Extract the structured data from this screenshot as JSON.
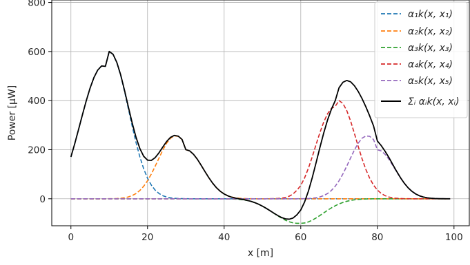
{
  "chart_data": {
    "type": "line",
    "title": "",
    "xlabel": "x [m]",
    "ylabel": "Power [μW]",
    "xlim": [
      -5,
      104
    ],
    "ylim": [
      -110,
      810
    ],
    "xticks": [
      0,
      20,
      40,
      60,
      80,
      100
    ],
    "yticks": [
      0,
      200,
      400,
      600,
      800
    ],
    "grid": true,
    "legend_position": "top-right",
    "x": [
      0,
      1,
      2,
      3,
      4,
      5,
      6,
      7,
      8,
      9,
      10,
      11,
      12,
      13,
      14,
      15,
      16,
      17,
      18,
      19,
      20,
      21,
      22,
      23,
      24,
      25,
      26,
      27,
      28,
      29,
      30,
      31,
      32,
      33,
      34,
      35,
      36,
      37,
      38,
      39,
      40,
      41,
      42,
      43,
      44,
      45,
      46,
      47,
      48,
      49,
      50,
      51,
      52,
      53,
      54,
      55,
      56,
      57,
      58,
      59,
      60,
      61,
      62,
      63,
      64,
      65,
      66,
      67,
      68,
      69,
      70,
      71,
      72,
      73,
      74,
      75,
      76,
      77,
      78,
      79,
      80,
      81,
      82,
      83,
      84,
      85,
      86,
      87,
      88,
      89,
      90,
      91,
      92,
      93,
      94,
      95,
      96,
      97,
      98,
      99
    ],
    "series": [
      {
        "name": "α₁k(x, x₁)",
        "color": "#1f77b4",
        "dash": "dashed",
        "values": [
          170.4,
          224.5,
          282.6,
          342.0,
          399.2,
          450.8,
          493.7,
          524.4,
          541.2,
          539.7,
          600.0,
          588.2,
          554.0,
          502.2,
          437.4,
          366.4,
          295.7,
          229.1,
          170.6,
          122.0,
          83.8,
          55.4,
          35.2,
          21.4,
          12.5,
          7.1,
          3.8,
          2.0,
          1.0,
          0.5,
          0.2,
          0.1,
          0.0,
          0.0,
          0.0,
          0.0,
          0.0,
          0.0,
          0.0,
          0.0,
          0.0,
          0.0,
          0.0,
          0.0,
          0.0,
          0.0,
          0.0,
          0.0,
          0.0,
          0.0,
          0.0,
          0.0,
          0.0,
          0.0,
          0.0,
          0.0,
          0.0,
          0.0,
          0.0,
          0.0,
          0.0,
          0.0,
          0.0,
          0.0,
          0.0,
          0.0,
          0.0,
          0.0,
          0.0,
          0.0,
          0.0,
          0.0,
          0.0,
          0.0,
          0.0,
          0.0,
          0.0,
          0.0,
          0.0,
          0.0,
          0.0,
          0.0,
          0.0,
          0.0,
          0.0,
          0.0,
          0.0,
          0.0,
          0.0,
          0.0,
          0.0,
          0.0,
          0.0,
          0.0,
          0.0,
          0.0,
          0.0,
          0.0,
          0.0,
          0.0
        ]
      },
      {
        "name": "α₂k(x, x₂)",
        "color": "#ff7f0e",
        "dash": "dashed",
        "values": [
          0.0,
          0.0,
          0.0,
          0.0,
          0.0,
          0.0,
          0.0,
          0.0,
          0.0,
          0.0,
          0.3,
          0.5,
          1.1,
          2.2,
          4.1,
          7.5,
          13.0,
          21.5,
          33.9,
          51.1,
          73.6,
          101.1,
          132.6,
          166.1,
          198.7,
          226.6,
          246.6,
          256.2,
          254.4,
          241.5,
          200.0,
          195.1,
          181.2,
          161.2,
          136.4,
          110.7,
          85.9,
          63.6,
          45.0,
          30.5,
          19.7,
          12.1,
          7.1,
          4.0,
          2.1,
          1.1,
          0.5,
          0.2,
          0.1,
          0.0,
          0.0,
          0.0,
          0.0,
          0.0,
          0.0,
          0.0,
          0.0,
          0.0,
          0.0,
          0.0,
          0.0,
          0.0,
          0.0,
          0.0,
          0.0,
          0.0,
          0.0,
          0.0,
          0.0,
          0.0,
          0.0,
          0.0,
          0.0,
          0.0,
          0.0,
          0.0,
          0.0,
          0.0,
          0.0,
          0.0,
          0.0,
          0.0,
          0.0,
          0.0,
          0.0,
          0.0,
          0.0,
          0.0,
          0.0,
          0.0,
          0.0,
          0.0,
          0.0,
          0.0,
          0.0,
          0.0,
          0.0,
          0.0,
          0.0,
          0.0
        ]
      },
      {
        "name": "α₃k(x, x₃)",
        "color": "#2ca02c",
        "dash": "dashed",
        "values": [
          0.0,
          0.0,
          0.0,
          0.0,
          0.0,
          0.0,
          0.0,
          0.0,
          0.0,
          0.0,
          0.0,
          0.0,
          0.0,
          0.0,
          0.0,
          0.0,
          0.0,
          0.0,
          0.0,
          0.0,
          0.0,
          0.0,
          0.0,
          0.0,
          0.0,
          0.0,
          0.0,
          0.0,
          0.0,
          0.0,
          0.0,
          0.0,
          0.0,
          0.0,
          0.0,
          0.0,
          0.0,
          0.0,
          0.0,
          -0.1,
          -0.2,
          -0.4,
          -0.8,
          -1.4,
          -2.6,
          -4.3,
          -7.0,
          -10.7,
          -15.8,
          -22.2,
          -30.1,
          -39.1,
          -49.0,
          -59.3,
          -69.5,
          -79.0,
          -87.3,
          -93.8,
          -98.1,
          -100.0,
          -100.0,
          -98.6,
          -94.3,
          -87.3,
          -78.3,
          -68.1,
          -57.5,
          -46.9,
          -37.1,
          -28.4,
          -21.0,
          -15.0,
          -10.3,
          -6.8,
          -4.3,
          -2.6,
          -1.5,
          -0.8,
          -0.4,
          -0.2,
          -0.1,
          0.0,
          0.0,
          0.0,
          0.0,
          0.0,
          0.0,
          0.0,
          0.0,
          0.0,
          0.0,
          0.0,
          0.0,
          0.0,
          0.0,
          0.0,
          0.0,
          0.0,
          0.0,
          0.0
        ]
      },
      {
        "name": "α₄k(x, x₄)",
        "color": "#d62728",
        "dash": "dashed",
        "values": [
          0.0,
          0.0,
          0.0,
          0.0,
          0.0,
          0.0,
          0.0,
          0.0,
          0.0,
          0.0,
          0.0,
          0.0,
          0.0,
          0.0,
          0.0,
          0.0,
          0.0,
          0.0,
          0.0,
          0.0,
          0.0,
          0.0,
          0.0,
          0.0,
          0.0,
          0.0,
          0.0,
          0.0,
          0.0,
          0.0,
          0.0,
          0.0,
          0.0,
          0.0,
          0.0,
          0.0,
          0.0,
          0.0,
          0.0,
          0.0,
          0.0,
          0.0,
          0.0,
          0.0,
          0.0,
          0.0,
          0.0,
          0.0,
          0.0,
          0.0,
          0.0,
          0.1,
          0.2,
          0.5,
          1.2,
          2.6,
          5.4,
          10.6,
          19.7,
          34.7,
          54.0,
          85.0,
          124.5,
          171.1,
          221.0,
          269.7,
          312.8,
          346.5,
          368.2,
          377.0,
          400.0,
          388.4,
          359.9,
          317.5,
          266.5,
          213.3,
          163.1,
          119.2,
          83.3,
          55.7,
          35.6,
          21.8,
          12.8,
          7.2,
          3.8,
          1.9,
          0.9,
          0.4,
          0.2,
          0.1,
          0.0,
          0.0,
          0.0,
          0.0,
          0.0,
          0.0,
          0.0,
          0.0,
          0.0,
          0.0
        ]
      },
      {
        "name": "α₅k(x, x₅)",
        "color": "#9467bd",
        "dash": "dashed",
        "values": [
          0.0,
          0.0,
          0.0,
          0.0,
          0.0,
          0.0,
          0.0,
          0.0,
          0.0,
          0.0,
          0.0,
          0.0,
          0.0,
          0.0,
          0.0,
          0.0,
          0.0,
          0.0,
          0.0,
          0.0,
          0.0,
          0.0,
          0.0,
          0.0,
          0.0,
          0.0,
          0.0,
          0.0,
          0.0,
          0.0,
          0.0,
          0.0,
          0.0,
          0.0,
          0.0,
          0.0,
          0.0,
          0.0,
          0.0,
          0.0,
          0.0,
          0.0,
          0.0,
          0.0,
          0.0,
          0.0,
          0.0,
          0.0,
          0.0,
          0.0,
          0.0,
          0.0,
          0.0,
          0.0,
          0.0,
          0.0,
          0.0,
          0.0,
          0.0,
          0.0,
          0.3,
          0.5,
          1.1,
          2.2,
          4.1,
          7.5,
          13.0,
          21.5,
          33.9,
          51.1,
          73.6,
          101.1,
          132.6,
          166.1,
          198.7,
          226.6,
          246.6,
          256.2,
          254.4,
          241.5,
          200.0,
          195.1,
          181.2,
          161.2,
          136.4,
          110.7,
          85.9,
          63.6,
          45.0,
          30.5,
          19.7,
          12.1,
          7.1,
          4.0,
          2.1,
          1.1,
          0.5,
          0.2,
          0.1,
          0.0
        ]
      },
      {
        "name": "Σᵢ αᵢk(x, xᵢ)",
        "color": "#000000",
        "dash": "solid",
        "values": [
          170.4,
          224.5,
          282.6,
          342.0,
          399.2,
          450.8,
          493.7,
          524.4,
          541.2,
          539.7,
          600.3,
          588.7,
          555.1,
          504.4,
          441.5,
          373.9,
          308.7,
          250.6,
          204.5,
          173.1,
          157.4,
          156.5,
          167.8,
          187.5,
          211.2,
          233.7,
          250.4,
          258.2,
          255.4,
          242.0,
          200.2,
          195.2,
          181.2,
          161.2,
          136.4,
          110.7,
          85.9,
          63.6,
          45.0,
          30.4,
          19.5,
          11.7,
          6.3,
          2.6,
          -0.5,
          -3.2,
          -6.5,
          -10.5,
          -15.7,
          -22.2,
          -30.1,
          -39.0,
          -48.8,
          -58.8,
          -68.3,
          -76.4,
          -81.9,
          -83.2,
          -78.4,
          -65.3,
          -45.7,
          -13.1,
          31.3,
          86.0,
          146.8,
          209.1,
          268.3,
          321.1,
          365.0,
          399.7,
          452.6,
          474.5,
          482.2,
          476.8,
          460.9,
          437.3,
          408.2,
          374.6,
          337.3,
          297.0,
          235.5,
          216.9,
          194.0,
          168.4,
          140.2,
          112.6,
          86.8,
          64.0,
          45.2,
          30.6,
          19.7,
          12.1,
          7.1,
          4.0,
          2.1,
          1.1,
          0.5,
          0.2,
          0.1,
          0.0
        ]
      }
    ]
  }
}
